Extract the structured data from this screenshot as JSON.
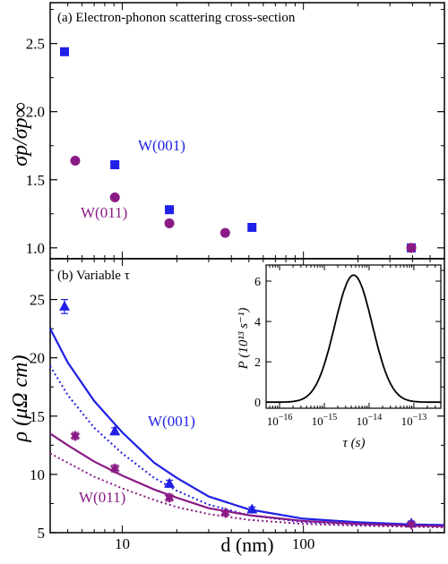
{
  "figure": {
    "panel_a_title": "(a) Electron-phonon scattering cross-section",
    "panel_b_title": "(b) Variable τ"
  },
  "colors": {
    "blue": "#1f1fe6",
    "purple": "#8a1a86",
    "axis": "#000000"
  },
  "chart_data": [
    {
      "type": "scatter",
      "title": "(a) Electron-phonon scattering cross-section",
      "ylabel": "σp/σp∞",
      "xscale": "log",
      "xlim": [
        4,
        600
      ],
      "ylim": [
        0.92,
        2.8
      ],
      "yticks": [
        1.0,
        1.5,
        2.0,
        2.5
      ],
      "ytick_labels": [
        "1.0",
        "1.5",
        "2.0",
        "2.5"
      ],
      "series": [
        {
          "name": "W(001)",
          "marker": "square",
          "color": "#1f1fe6",
          "x": [
            4.8,
            9.1,
            18.2,
            52,
            394
          ],
          "y": [
            2.44,
            1.61,
            1.28,
            1.15,
            1.0
          ]
        },
        {
          "name": "W(011)",
          "marker": "circle",
          "color": "#8a1a86",
          "x": [
            5.5,
            9.1,
            18.2,
            37,
            394
          ],
          "y": [
            1.64,
            1.37,
            1.18,
            1.11,
            1.0
          ]
        }
      ]
    },
    {
      "type": "line",
      "title": "(b) Variable τ",
      "xlabel": "d (nm)",
      "ylabel": "ρ (μΩ cm)",
      "xscale": "log",
      "xlim": [
        4,
        600
      ],
      "ylim": [
        5,
        28.5
      ],
      "xticks": [
        10,
        100
      ],
      "xtick_labels": [
        "10",
        "100"
      ],
      "yticks": [
        5,
        10,
        15,
        20,
        25
      ],
      "ytick_labels": [
        "5",
        "10",
        "15",
        "20",
        "25"
      ],
      "points": [
        {
          "name": "W(001)",
          "marker": "triangle-up",
          "color": "#1f1fe6",
          "x": [
            4.8,
            9.1,
            18.2,
            52,
            394
          ],
          "y": [
            24.4,
            13.7,
            9.2,
            7.0,
            5.8
          ],
          "yerr": [
            0.6,
            0.3,
            0.3,
            0.2,
            0.2
          ]
        },
        {
          "name": "W(011)",
          "marker": "star",
          "color": "#8a1a86",
          "x": [
            5.5,
            9.1,
            18.2,
            37,
            394
          ],
          "y": [
            13.3,
            10.5,
            8.0,
            6.7,
            5.7
          ],
          "yerr": [
            0.3,
            0.3,
            0.3,
            0.2,
            0.2
          ]
        }
      ],
      "series": [
        {
          "color": "#1f1fe6",
          "style": "solid",
          "x": [
            4,
            5,
            7,
            10,
            15,
            20,
            30,
            50,
            100,
            200,
            400,
            600
          ],
          "y": [
            22.5,
            19.6,
            16.3,
            13.6,
            11.0,
            9.7,
            8.1,
            7.0,
            6.2,
            5.9,
            5.7,
            5.65
          ]
        },
        {
          "color": "#1f1fe6",
          "style": "dotted",
          "x": [
            4,
            5,
            7,
            10,
            15,
            20,
            30,
            50,
            100,
            200,
            400,
            600
          ],
          "y": [
            19.3,
            16.8,
            14.0,
            11.8,
            9.7,
            8.6,
            7.4,
            6.5,
            5.9,
            5.7,
            5.6,
            5.55
          ]
        },
        {
          "color": "#8a1a86",
          "style": "solid",
          "x": [
            4,
            5,
            7,
            10,
            15,
            20,
            30,
            50,
            100,
            200,
            400,
            600
          ],
          "y": [
            13.5,
            12.5,
            11.1,
            9.9,
            8.7,
            8.0,
            7.1,
            6.5,
            6.0,
            5.75,
            5.6,
            5.55
          ]
        },
        {
          "color": "#8a1a86",
          "style": "dotted",
          "x": [
            4,
            5,
            7,
            10,
            15,
            20,
            30,
            50,
            100,
            200,
            400,
            600
          ],
          "y": [
            11.8,
            11.0,
            9.8,
            8.8,
            7.8,
            7.2,
            6.6,
            6.1,
            5.75,
            5.6,
            5.5,
            5.45
          ]
        }
      ],
      "labels": [
        "W(001)",
        "W(011)"
      ]
    },
    {
      "type": "line",
      "title": "inset",
      "xlabel": "τ (s)",
      "ylabel": "P (10¹³ s⁻¹)",
      "xscale": "log",
      "xlim": [
        5e-17,
        4e-13
      ],
      "ylim": [
        -0.3,
        6.8
      ],
      "xtick_exponents": [
        -16,
        -15,
        -14,
        -13
      ],
      "yticks": [
        0,
        2,
        4,
        6
      ],
      "ytick_labels": [
        "0",
        "2",
        "4",
        "6"
      ],
      "series": [
        {
          "shape": "log-normal",
          "peak_tau": 4.5e-15,
          "peak_value": 6.3,
          "log10_sigma": 0.42
        }
      ]
    }
  ]
}
